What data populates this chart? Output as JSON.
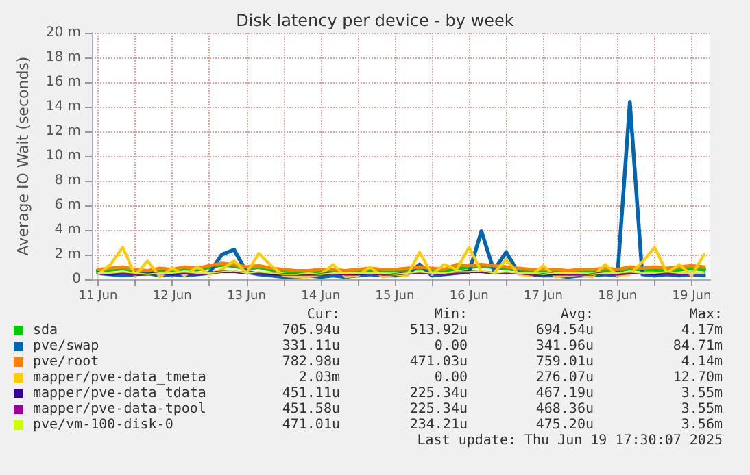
{
  "chart_data": {
    "type": "line",
    "title": "Disk latency per device - by week",
    "ylabel": "Average IO Wait (seconds)",
    "x": [
      "2025-06-11T12:00",
      "2025-06-11T16:00",
      "2025-06-11T20:00",
      "2025-06-12T00:00",
      "2025-06-12T04:00",
      "2025-06-12T08:00",
      "2025-06-12T12:00",
      "2025-06-12T16:00",
      "2025-06-12T20:00",
      "2025-06-13T00:00",
      "2025-06-13T04:00",
      "2025-06-13T08:00",
      "2025-06-13T12:00",
      "2025-06-13T16:00",
      "2025-06-13T20:00",
      "2025-06-14T00:00",
      "2025-06-14T04:00",
      "2025-06-14T08:00",
      "2025-06-14T12:00",
      "2025-06-14T16:00",
      "2025-06-14T20:00",
      "2025-06-15T00:00",
      "2025-06-15T04:00",
      "2025-06-15T08:00",
      "2025-06-15T12:00",
      "2025-06-15T16:00",
      "2025-06-15T20:00",
      "2025-06-16T00:00",
      "2025-06-16T04:00",
      "2025-06-16T08:00",
      "2025-06-16T12:00",
      "2025-06-16T16:00",
      "2025-06-16T20:00",
      "2025-06-17T00:00",
      "2025-06-17T04:00",
      "2025-06-17T08:00",
      "2025-06-17T12:00",
      "2025-06-17T16:00",
      "2025-06-17T20:00",
      "2025-06-18T00:00",
      "2025-06-18T04:00",
      "2025-06-18T08:00",
      "2025-06-18T12:00",
      "2025-06-18T16:00",
      "2025-06-18T20:00",
      "2025-06-19T00:00",
      "2025-06-19T04:00",
      "2025-06-19T08:00",
      "2025-06-19T12:00",
      "2025-06-19T16:00"
    ],
    "series": [
      {
        "name": "sda",
        "color": "#00cc00",
        "values": [
          0.7,
          0.8,
          0.9,
          0.7,
          0.6,
          0.8,
          0.7,
          0.9,
          0.8,
          1.0,
          1.2,
          1.1,
          0.9,
          1.0,
          0.8,
          0.7,
          0.6,
          0.6,
          0.7,
          0.7,
          0.6,
          0.7,
          0.8,
          0.7,
          0.7,
          0.8,
          0.9,
          0.8,
          0.7,
          0.9,
          1.0,
          1.1,
          1.0,
          0.9,
          0.8,
          0.7,
          0.7,
          0.7,
          0.6,
          0.7,
          0.7,
          0.8,
          0.7,
          0.9,
          0.8,
          0.8,
          0.7,
          0.8,
          0.9,
          0.8
        ]
      },
      {
        "name": "pve/swap",
        "color": "#0066b3",
        "values": [
          0.5,
          0.4,
          0.3,
          0.4,
          0.5,
          0.3,
          0.4,
          0.3,
          0.4,
          0.5,
          2.0,
          2.4,
          0.6,
          0.4,
          0.3,
          0.2,
          0.2,
          0.3,
          0.2,
          0.3,
          0.2,
          0.3,
          0.4,
          0.3,
          0.3,
          0.4,
          1.2,
          0.3,
          0.4,
          0.5,
          0.6,
          3.9,
          0.7,
          2.2,
          0.5,
          0.4,
          0.3,
          0.3,
          0.2,
          0.3,
          0.3,
          0.4,
          0.3,
          14.4,
          0.4,
          0.3,
          0.4,
          0.3,
          0.4,
          0.3
        ]
      },
      {
        "name": "pve/root",
        "color": "#ff8000",
        "values": [
          0.8,
          0.9,
          1.0,
          0.8,
          0.7,
          0.9,
          0.8,
          1.0,
          0.9,
          1.1,
          1.3,
          1.2,
          1.0,
          1.1,
          0.9,
          0.8,
          0.7,
          0.7,
          0.8,
          0.8,
          0.7,
          0.8,
          0.9,
          0.8,
          0.8,
          0.9,
          1.0,
          0.9,
          0.8,
          1.2,
          1.1,
          1.2,
          1.1,
          1.0,
          0.9,
          0.8,
          0.8,
          0.8,
          0.7,
          0.8,
          0.8,
          0.9,
          0.8,
          1.0,
          0.9,
          1.0,
          0.9,
          1.0,
          1.1,
          1.0
        ]
      },
      {
        "name": "mapper/pve-data_tmeta",
        "color": "#ffcc00",
        "values": [
          0.4,
          1.2,
          2.6,
          0.3,
          1.5,
          0.2,
          0.9,
          0.3,
          1.0,
          0.4,
          0.8,
          1.5,
          0.5,
          2.1,
          1.1,
          0.3,
          0.2,
          0.2,
          0.4,
          1.2,
          0.2,
          0.3,
          1.0,
          0.2,
          0.4,
          0.3,
          2.2,
          0.4,
          1.2,
          0.8,
          2.6,
          0.6,
          0.5,
          1.6,
          0.4,
          0.3,
          1.1,
          0.2,
          0.3,
          0.4,
          0.2,
          1.2,
          0.3,
          0.4,
          1.4,
          2.6,
          0.5,
          1.2,
          0.3,
          2.0
        ]
      },
      {
        "name": "mapper/pve-data_tdata",
        "color": "#330099",
        "values": [
          0.5,
          0.4,
          0.5,
          0.4,
          0.4,
          0.5,
          0.4,
          0.5,
          0.4,
          0.5,
          0.6,
          0.6,
          0.5,
          0.5,
          0.4,
          0.4,
          0.4,
          0.4,
          0.4,
          0.5,
          0.4,
          0.4,
          0.5,
          0.4,
          0.4,
          0.5,
          0.5,
          0.5,
          0.4,
          0.5,
          0.6,
          0.6,
          0.5,
          0.5,
          0.5,
          0.4,
          0.4,
          0.4,
          0.4,
          0.4,
          0.4,
          0.5,
          0.4,
          0.5,
          0.5,
          0.4,
          0.5,
          0.4,
          0.5,
          0.5
        ]
      },
      {
        "name": "mapper/pve-data-tpool",
        "color": "#990099",
        "values": [
          0.5,
          0.5,
          0.5,
          0.4,
          0.4,
          0.5,
          0.5,
          0.5,
          0.4,
          0.5,
          0.6,
          0.6,
          0.5,
          0.5,
          0.5,
          0.4,
          0.4,
          0.4,
          0.4,
          0.5,
          0.4,
          0.5,
          0.5,
          0.4,
          0.4,
          0.5,
          0.5,
          0.5,
          0.4,
          0.5,
          0.6,
          0.6,
          0.5,
          0.5,
          0.5,
          0.4,
          0.4,
          0.5,
          0.4,
          0.4,
          0.4,
          0.5,
          0.4,
          0.5,
          0.5,
          0.5,
          0.5,
          0.4,
          0.5,
          0.5
        ]
      },
      {
        "name": "pve/vm-100-disk-0",
        "color": "#ccff00",
        "values": [
          0.5,
          0.5,
          0.6,
          0.5,
          0.4,
          0.5,
          0.5,
          0.6,
          0.5,
          0.5,
          0.6,
          0.7,
          0.5,
          0.6,
          0.5,
          0.4,
          0.4,
          0.5,
          0.4,
          0.5,
          0.5,
          0.5,
          0.5,
          0.5,
          0.4,
          0.5,
          0.6,
          0.5,
          0.5,
          0.6,
          0.6,
          0.7,
          0.5,
          0.6,
          0.5,
          0.5,
          0.4,
          0.5,
          0.5,
          0.5,
          0.4,
          0.5,
          0.5,
          0.6,
          0.5,
          0.5,
          0.6,
          0.5,
          0.5,
          0.5
        ]
      }
    ],
    "xlim": [
      "2025-06-11T10:00",
      "2025-06-19T18:00"
    ],
    "xticks": [
      {
        "value": "2025-06-11T12:00",
        "label": "11 Jun"
      },
      {
        "value": "2025-06-12T00:00",
        "label": null
      },
      {
        "value": "2025-06-12T12:00",
        "label": "12 Jun"
      },
      {
        "value": "2025-06-13T00:00",
        "label": null
      },
      {
        "value": "2025-06-13T12:00",
        "label": "13 Jun"
      },
      {
        "value": "2025-06-14T00:00",
        "label": null
      },
      {
        "value": "2025-06-14T12:00",
        "label": "14 Jun"
      },
      {
        "value": "2025-06-15T00:00",
        "label": null
      },
      {
        "value": "2025-06-15T12:00",
        "label": "15 Jun"
      },
      {
        "value": "2025-06-16T00:00",
        "label": null
      },
      {
        "value": "2025-06-16T12:00",
        "label": "16 Jun"
      },
      {
        "value": "2025-06-17T00:00",
        "label": null
      },
      {
        "value": "2025-06-17T12:00",
        "label": "17 Jun"
      },
      {
        "value": "2025-06-18T00:00",
        "label": null
      },
      {
        "value": "2025-06-18T12:00",
        "label": "18 Jun"
      },
      {
        "value": "2025-06-19T00:00",
        "label": null
      },
      {
        "value": "2025-06-19T12:00",
        "label": "19 Jun"
      }
    ],
    "ylim": [
      0,
      20
    ],
    "yticks": [
      0,
      {
        "value": 2,
        "label": "2 m"
      },
      {
        "value": 4,
        "label": "4 m"
      },
      {
        "value": 6,
        "label": "6 m"
      },
      {
        "value": 8,
        "label": "8 m"
      },
      {
        "value": 10,
        "label": "10 m"
      },
      {
        "value": 12,
        "label": "12 m"
      },
      {
        "value": 14,
        "label": "14 m"
      },
      {
        "value": 16,
        "label": "16 m"
      },
      {
        "value": 18,
        "label": "18 m"
      },
      {
        "value": 20,
        "label": "20 m"
      }
    ],
    "grid": true,
    "legend": "bottom",
    "marker": "none",
    "line_style": "solid",
    "annotations": [
      "Cur:",
      "Min:",
      "Avg:",
      "Max:",
      "705.94u",
      "513.92u",
      "694.54u",
      "4.17m",
      "331.11u",
      "0.00",
      "341.96u",
      "84.71m",
      "782.98u",
      "471.03u",
      "759.01u",
      "4.14m",
      "2.03m",
      "0.00",
      "276.07u",
      "12.70m",
      "451.11u",
      "225.34u",
      "467.19u",
      "3.55m",
      "451.58u",
      "225.34u",
      "468.36u",
      "3.55m",
      "471.01u",
      "234.21u",
      "475.20u",
      "3.56m",
      "Last update: Thu Jun 19 17:30:07 2025"
    ]
  }
}
